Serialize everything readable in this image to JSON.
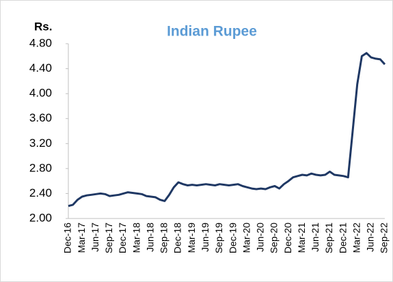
{
  "chart_data": {
    "type": "line",
    "title": "Indian Rupee",
    "ylabel": "Rs.",
    "categories": [
      "Dec-16",
      null,
      null,
      "Mar-17",
      null,
      null,
      "Jun-17",
      null,
      null,
      "Sep-17",
      null,
      null,
      "Dec-17",
      null,
      null,
      "Mar-18",
      null,
      null,
      "Jun-18",
      null,
      null,
      "Sep-18",
      null,
      null,
      "Dec-18",
      null,
      null,
      "Mar-19",
      null,
      null,
      "Jun-19",
      null,
      null,
      "Sep-19",
      null,
      null,
      "Dec-19",
      null,
      null,
      "Mar-20",
      null,
      null,
      "Jun-20",
      null,
      null,
      "Sep-20",
      null,
      null,
      "Dec-20",
      null,
      null,
      "Mar-21",
      null,
      null,
      "Jun-21",
      null,
      null,
      "Sep-21",
      null,
      null,
      "Dec-21",
      null,
      null,
      "Mar-22",
      null,
      null,
      "Jun-22",
      null,
      null,
      "Sep-22"
    ],
    "values": [
      2.2,
      2.22,
      2.3,
      2.35,
      2.37,
      2.38,
      2.39,
      2.4,
      2.39,
      2.36,
      2.37,
      2.38,
      2.4,
      2.42,
      2.41,
      2.4,
      2.39,
      2.36,
      2.35,
      2.34,
      2.3,
      2.28,
      2.38,
      2.5,
      2.58,
      2.55,
      2.53,
      2.54,
      2.53,
      2.54,
      2.55,
      2.54,
      2.53,
      2.55,
      2.54,
      2.53,
      2.54,
      2.55,
      2.52,
      2.5,
      2.48,
      2.47,
      2.48,
      2.47,
      2.5,
      2.52,
      2.48,
      2.55,
      2.6,
      2.66,
      2.68,
      2.7,
      2.69,
      2.72,
      2.7,
      2.69,
      2.7,
      2.75,
      2.7,
      2.69,
      2.68,
      2.66,
      3.4,
      4.15,
      4.6,
      4.65,
      4.58,
      4.56,
      4.55,
      4.47
    ],
    "color": "#1f3864",
    "ylim": [
      2.0,
      4.8
    ],
    "yticks": [
      {
        "value": 2.0,
        "label": "2.00"
      },
      {
        "value": 2.4,
        "label": "2.40"
      },
      {
        "value": 2.8,
        "label": "2.80"
      },
      {
        "value": 3.2,
        "label": "3.20"
      },
      {
        "value": 3.6,
        "label": "3.60"
      },
      {
        "value": 4.0,
        "label": "4.00"
      },
      {
        "value": 4.4,
        "label": "4.40"
      },
      {
        "value": 4.8,
        "label": "4.80"
      }
    ],
    "grid": false
  }
}
